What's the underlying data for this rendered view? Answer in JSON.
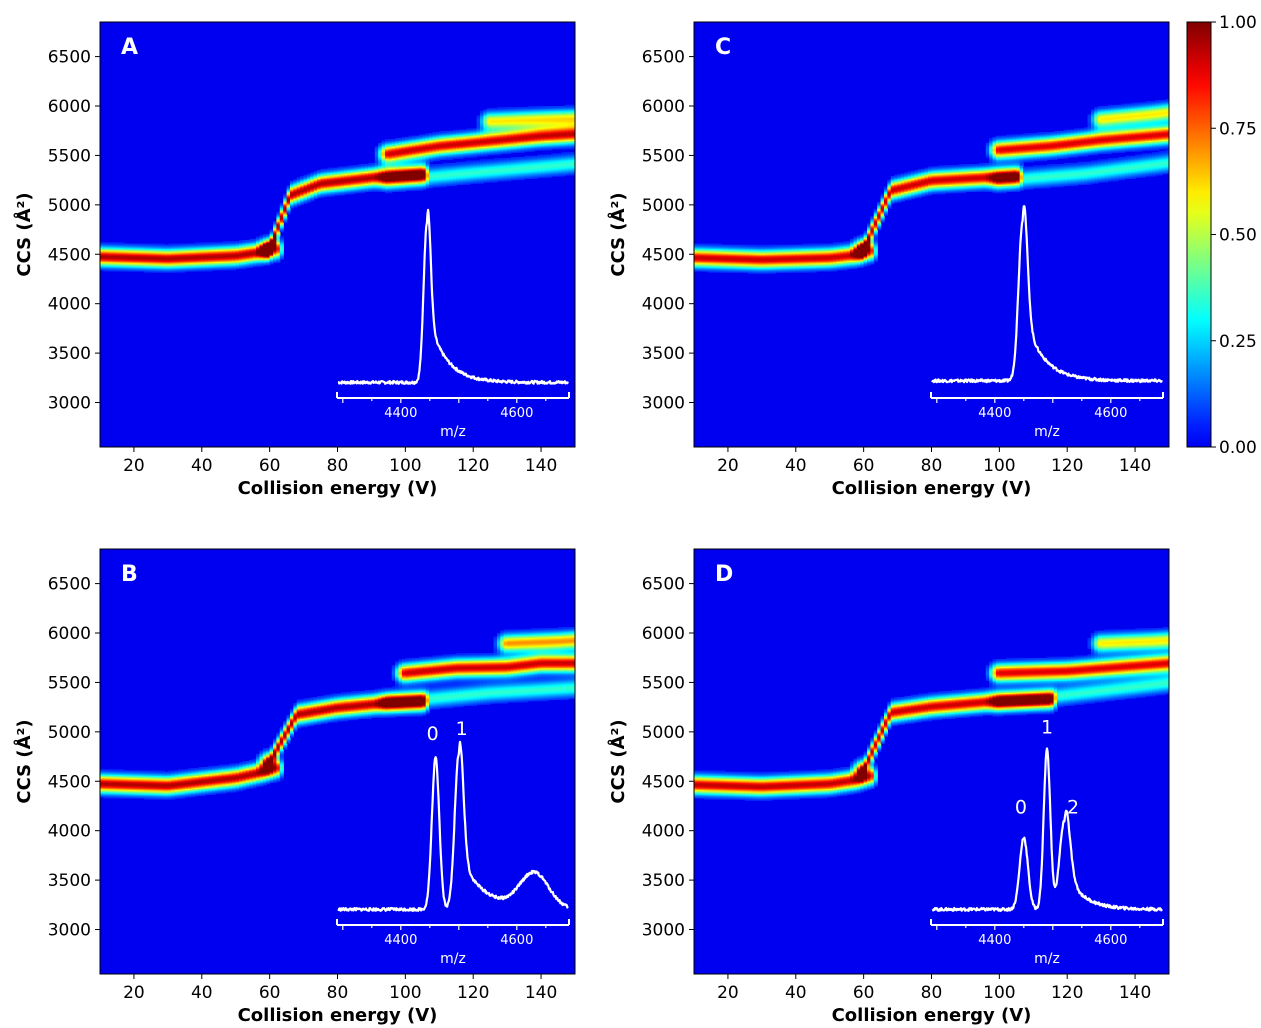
{
  "chart_data": [
    {
      "type": "heatmap",
      "panel_label": "A",
      "xlabel": "Collision energy (V)",
      "ylabel": "CCS (Å²)",
      "xlim": [
        10,
        150
      ],
      "ylim": [
        2550,
        6850
      ],
      "x_ticks": [
        "20",
        "40",
        "60",
        "80",
        "100",
        "120",
        "140"
      ],
      "y_ticks": [
        "3000",
        "3500",
        "4000",
        "4500",
        "5000",
        "5500",
        "6000",
        "6500"
      ],
      "ridges": [
        {
          "ce": [
            10,
            30,
            50,
            58,
            62
          ],
          "ccs": [
            4480,
            4460,
            4490,
            4530,
            4560
          ],
          "intensity": 0.95
        },
        {
          "ce": [
            60,
            66,
            75,
            95,
            105
          ],
          "ccs": [
            4560,
            5100,
            5220,
            5300,
            5320
          ],
          "intensity": 0.95
        },
        {
          "ce": [
            95,
            110,
            125,
            140,
            150
          ],
          "ccs": [
            5520,
            5600,
            5650,
            5700,
            5720
          ],
          "intensity": 0.92
        },
        {
          "ce": [
            125,
            140,
            150
          ],
          "ccs": [
            5850,
            5870,
            5880
          ],
          "intensity": 0.6
        },
        {
          "ce": [
            95,
            120,
            150
          ],
          "ccs": [
            5250,
            5330,
            5420
          ],
          "intensity": 0.35
        }
      ],
      "inset": {
        "xlabel": "m/z",
        "x_ticks": [
          "4400",
          "4600"
        ],
        "xlim": [
          4290,
          4690
        ],
        "peaks": [
          {
            "mz": 4445,
            "height": 1.0,
            "width": 8
          }
        ],
        "tail": {
          "start": 4445,
          "decay": 30,
          "height": 0.45
        },
        "baseline": 0.02,
        "peak_labels": []
      }
    },
    {
      "type": "heatmap",
      "panel_label": "C",
      "xlabel": "Collision energy (V)",
      "ylabel": "CCS (Å²)",
      "xlim": [
        10,
        150
      ],
      "ylim": [
        2550,
        6850
      ],
      "x_ticks": [
        "20",
        "40",
        "60",
        "80",
        "100",
        "120",
        "140"
      ],
      "y_ticks": [
        "3000",
        "3500",
        "4000",
        "4500",
        "5000",
        "5500",
        "6000",
        "6500"
      ],
      "ridges": [
        {
          "ce": [
            10,
            30,
            50,
            58,
            62
          ],
          "ccs": [
            4470,
            4450,
            4470,
            4500,
            4540
          ],
          "intensity": 0.92
        },
        {
          "ce": [
            60,
            68,
            80,
            95,
            105
          ],
          "ccs": [
            4560,
            5150,
            5250,
            5280,
            5300
          ],
          "intensity": 0.92
        },
        {
          "ce": [
            100,
            115,
            130,
            140,
            150
          ],
          "ccs": [
            5560,
            5600,
            5660,
            5690,
            5720
          ],
          "intensity": 0.9
        },
        {
          "ce": [
            130,
            145,
            150
          ],
          "ccs": [
            5870,
            5920,
            5940
          ],
          "intensity": 0.6
        },
        {
          "ce": [
            100,
            125,
            150
          ],
          "ccs": [
            5250,
            5320,
            5430
          ],
          "intensity": 0.35
        }
      ],
      "inset": {
        "xlabel": "m/z",
        "x_ticks": [
          "4400",
          "4600"
        ],
        "xlim": [
          4290,
          4690
        ],
        "peaks": [
          {
            "mz": 4448,
            "height": 1.0,
            "width": 10
          }
        ],
        "tail": {
          "start": 4448,
          "decay": 32,
          "height": 0.45
        },
        "baseline": 0.03,
        "peak_labels": []
      }
    },
    {
      "type": "heatmap",
      "panel_label": "B",
      "xlabel": "Collision energy (V)",
      "ylabel": "CCS (Å²)",
      "xlim": [
        10,
        150
      ],
      "ylim": [
        2550,
        6850
      ],
      "x_ticks": [
        "20",
        "40",
        "60",
        "80",
        "100",
        "120",
        "140"
      ],
      "y_ticks": [
        "3000",
        "3500",
        "4000",
        "4500",
        "5000",
        "5500",
        "6000",
        "6500"
      ],
      "ridges": [
        {
          "ce": [
            10,
            30,
            50,
            58,
            62
          ],
          "ccs": [
            4480,
            4460,
            4540,
            4600,
            4640
          ],
          "intensity": 0.95
        },
        {
          "ce": [
            60,
            68,
            80,
            95,
            105
          ],
          "ccs": [
            4700,
            5180,
            5250,
            5300,
            5310
          ],
          "intensity": 0.95
        },
        {
          "ce": [
            100,
            115,
            130,
            140,
            150
          ],
          "ccs": [
            5600,
            5650,
            5660,
            5700,
            5700
          ],
          "intensity": 0.92
        },
        {
          "ce": [
            130,
            145,
            150
          ],
          "ccs": [
            5900,
            5920,
            5930
          ],
          "intensity": 0.7
        },
        {
          "ce": [
            95,
            125,
            150
          ],
          "ccs": [
            5300,
            5400,
            5450
          ],
          "intensity": 0.35
        }
      ],
      "inset": {
        "xlabel": "m/z",
        "x_ticks": [
          "4400",
          "4600"
        ],
        "xlim": [
          4290,
          4690
        ],
        "peaks": [
          {
            "mz": 4460,
            "height": 0.95,
            "width": 9
          },
          {
            "mz": 4500,
            "height": 0.97,
            "width": 10
          },
          {
            "mz": 4630,
            "height": 0.22,
            "width": 35
          }
        ],
        "tail": {
          "start": 4500,
          "decay": 40,
          "height": 0.35
        },
        "baseline": 0.02,
        "peak_labels": [
          {
            "text": "0",
            "mz": 4455,
            "height": 1.08
          },
          {
            "text": "1",
            "mz": 4505,
            "height": 1.11
          }
        ]
      }
    },
    {
      "type": "heatmap",
      "panel_label": "D",
      "xlabel": "Collision energy (V)",
      "ylabel": "CCS (Å²)",
      "xlim": [
        10,
        150
      ],
      "ylim": [
        2550,
        6850
      ],
      "x_ticks": [
        "20",
        "40",
        "60",
        "80",
        "100",
        "120",
        "140"
      ],
      "y_ticks": [
        "3000",
        "3500",
        "4000",
        "4500",
        "5000",
        "5500",
        "6000",
        "6500"
      ],
      "ridges": [
        {
          "ce": [
            10,
            30,
            50,
            58,
            62
          ],
          "ccs": [
            4470,
            4450,
            4480,
            4520,
            4560
          ],
          "intensity": 0.93
        },
        {
          "ce": [
            60,
            68,
            80,
            100,
            115
          ],
          "ccs": [
            4620,
            5200,
            5260,
            5320,
            5330
          ],
          "intensity": 0.92
        },
        {
          "ce": [
            100,
            120,
            135,
            150
          ],
          "ccs": [
            5600,
            5620,
            5660,
            5700
          ],
          "intensity": 0.9
        },
        {
          "ce": [
            130,
            145,
            150
          ],
          "ccs": [
            5900,
            5920,
            5930
          ],
          "intensity": 0.6
        },
        {
          "ce": [
            100,
            125,
            150
          ],
          "ccs": [
            5300,
            5400,
            5500
          ],
          "intensity": 0.35
        }
      ],
      "inset": {
        "xlabel": "m/z",
        "x_ticks": [
          "4400",
          "4600"
        ],
        "xlim": [
          4290,
          4690
        ],
        "peaks": [
          {
            "mz": 4450,
            "height": 0.45,
            "width": 10
          },
          {
            "mz": 4490,
            "height": 1.0,
            "width": 8
          },
          {
            "mz": 4520,
            "height": 0.55,
            "width": 12
          }
        ],
        "tail": {
          "start": 4520,
          "decay": 30,
          "height": 0.25
        },
        "baseline": 0.02,
        "peak_labels": [
          {
            "text": "0",
            "mz": 4445,
            "height": 0.62
          },
          {
            "text": "1",
            "mz": 4490,
            "height": 1.12
          },
          {
            "text": "2",
            "mz": 4535,
            "height": 0.62
          }
        ]
      }
    }
  ],
  "colorbar": {
    "ticks": [
      "0.00",
      "0.25",
      "0.50",
      "0.75",
      "1.00"
    ],
    "range": [
      0,
      1
    ],
    "colormap": "jet"
  }
}
